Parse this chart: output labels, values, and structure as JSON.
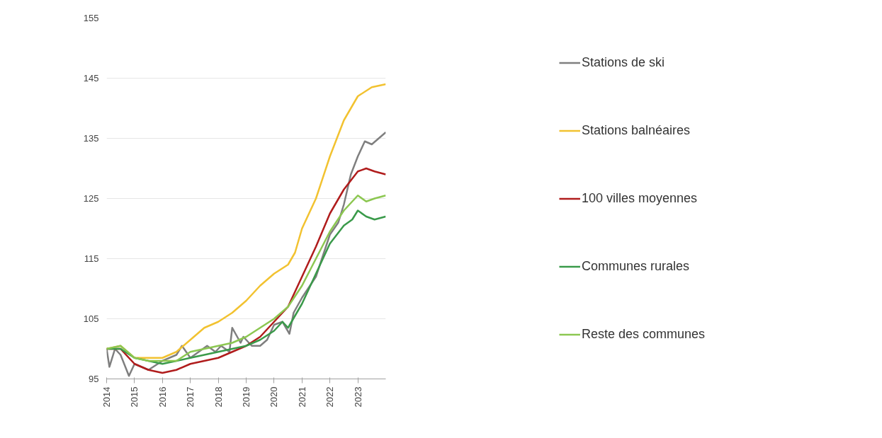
{
  "chart_data": {
    "type": "line",
    "xlim": [
      2014,
      2024
    ],
    "xticks": [
      2014,
      2015,
      2016,
      2017,
      2018,
      2019,
      2020,
      2021,
      2022,
      2023
    ],
    "ylim": [
      95,
      155
    ],
    "yticks": [
      95,
      105,
      115,
      125,
      135,
      145,
      155
    ],
    "grid": "y",
    "legend": "right",
    "line_style": "solid",
    "marker": "none",
    "series": [
      {
        "name": "Stations de ski",
        "color": "#7f7f7f",
        "x": [
          2014,
          2014.1,
          2014.3,
          2014.5,
          2014.8,
          2015,
          2015.5,
          2016,
          2016.5,
          2016.7,
          2017,
          2017.3,
          2017.6,
          2017.9,
          2018.1,
          2018.4,
          2018.5,
          2018.8,
          2018.9,
          2019.2,
          2019.5,
          2019.75,
          2020,
          2020.3,
          2020.55,
          2020.7,
          2021,
          2021.5,
          2022,
          2022.3,
          2022.5,
          2022.75,
          2023,
          2023.25,
          2023.5,
          2023.75,
          2024
        ],
        "values": [
          100,
          97,
          100,
          99,
          95.5,
          97.5,
          96.5,
          98,
          99,
          100.5,
          98.5,
          99.5,
          100.5,
          99.5,
          100.5,
          99.5,
          103.5,
          101,
          102,
          100.5,
          100.5,
          101.5,
          104,
          104.5,
          102.5,
          106,
          108.5,
          112,
          119,
          121,
          124,
          129,
          132,
          134.5,
          134,
          135,
          136
        ]
      },
      {
        "name": "Stations balnéaires",
        "color": "#f2c230",
        "x": [
          2014,
          2014.5,
          2015,
          2015.5,
          2016,
          2016.5,
          2017,
          2017.5,
          2018,
          2018.5,
          2019,
          2019.5,
          2020,
          2020.5,
          2020.75,
          2021,
          2021.5,
          2022,
          2022.5,
          2022.75,
          2023,
          2023.5,
          2024
        ],
        "values": [
          100,
          100.5,
          98.5,
          98.5,
          98.5,
          99.5,
          101.5,
          103.5,
          104.5,
          106,
          108,
          110.5,
          112.5,
          114,
          116,
          120,
          125,
          132,
          138,
          140,
          142,
          143.5,
          144
        ]
      },
      {
        "name": "100 villes moyennes",
        "color": "#b01c1c",
        "x": [
          2014,
          2014.5,
          2015,
          2015.5,
          2016,
          2016.5,
          2017,
          2017.5,
          2018,
          2018.5,
          2019,
          2019.5,
          2020,
          2020.5,
          2021,
          2021.5,
          2022,
          2022.5,
          2023,
          2023.3,
          2023.6,
          2024
        ],
        "values": [
          100,
          100,
          97.5,
          96.5,
          96,
          96.5,
          97.5,
          98,
          98.5,
          99.5,
          100.5,
          102,
          104.5,
          107,
          112,
          117,
          122.5,
          126.5,
          129.5,
          130,
          129.5,
          129
        ]
      },
      {
        "name": "Communes rurales",
        "color": "#3a9a4a",
        "x": [
          2014,
          2014.5,
          2015,
          2015.5,
          2016,
          2016.5,
          2017,
          2017.5,
          2018,
          2018.5,
          2019,
          2019.5,
          2020,
          2020.3,
          2020.5,
          2021,
          2021.5,
          2022,
          2022.5,
          2022.8,
          2023,
          2023.3,
          2023.6,
          2024
        ],
        "values": [
          100,
          100,
          98.5,
          98,
          97.5,
          98,
          98.5,
          99,
          99.5,
          100,
          100.5,
          101.5,
          103,
          104.5,
          103.5,
          107.5,
          112.5,
          117.5,
          120.5,
          121.5,
          123,
          122,
          121.5,
          122
        ]
      },
      {
        "name": "Reste des communes",
        "color": "#8cc751",
        "x": [
          2014,
          2014.5,
          2015,
          2015.5,
          2016,
          2016.5,
          2017,
          2017.5,
          2018,
          2018.5,
          2019,
          2019.5,
          2020,
          2020.5,
          2021,
          2021.5,
          2022,
          2022.5,
          2023,
          2023.3,
          2023.6,
          2024
        ],
        "values": [
          100,
          100.5,
          98.5,
          98,
          98,
          98,
          99.5,
          100,
          100.5,
          101,
          102,
          103.5,
          105,
          107,
          110.5,
          115,
          119.5,
          123,
          125.5,
          124.5,
          125,
          125.5
        ]
      }
    ]
  }
}
